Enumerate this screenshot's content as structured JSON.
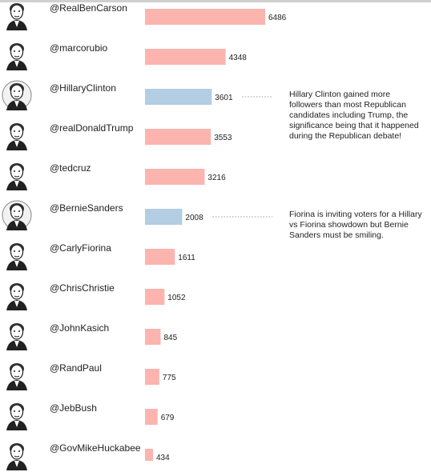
{
  "chart_data": {
    "type": "bar",
    "orientation": "horizontal",
    "categories": [
      "@RealBenCarson",
      "@marcorubio",
      "@HillaryClinton",
      "@realDonaldTrump",
      "@tedcruz",
      "@BernieSanders",
      "@CarlyFiorina",
      "@ChrisChristie",
      "@JohnKasich",
      "@RandPaul",
      "@JebBush",
      "@GovMikeHuckabee"
    ],
    "values": [
      6486,
      4348,
      3601,
      3553,
      3216,
      2008,
      1611,
      1052,
      845,
      775,
      679,
      434
    ],
    "party": [
      "R",
      "R",
      "D",
      "R",
      "R",
      "D",
      "R",
      "R",
      "R",
      "R",
      "R",
      "R"
    ],
    "colors": {
      "R": "#fbb4ae",
      "D": "#b3cde3"
    },
    "xlim": [
      0,
      6486
    ],
    "grid": false,
    "legend": "none",
    "annotations": [
      {
        "target": "@HillaryClinton",
        "text": "Hillary Clinton gained more followers than most Republican candidates including Trump, the significance being that it happened during the Republican debate!"
      },
      {
        "target": "@BernieSanders",
        "text": "Fiorina is inviting voters for a Hillary vs Fiorina showdown but Bernie Sanders must be smiling."
      }
    ]
  }
}
